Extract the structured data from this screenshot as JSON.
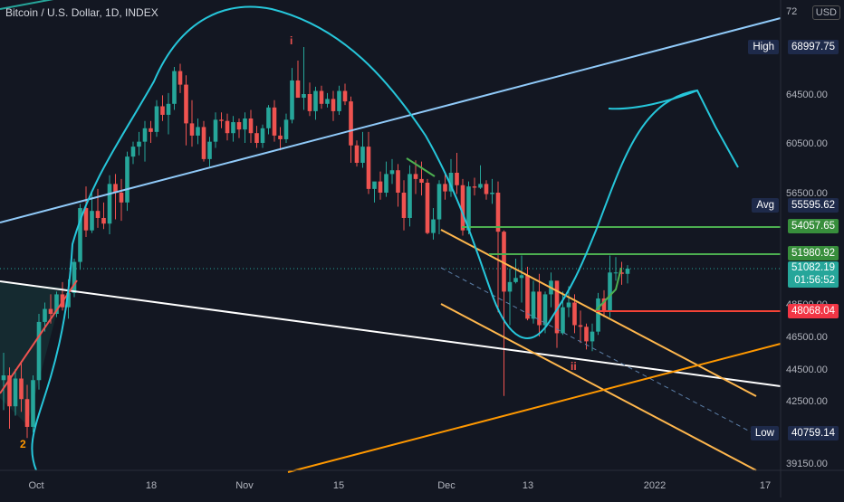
{
  "header": {
    "title": "Bitcoin / U.S. Dollar, 1D, INDEX",
    "currency": "USD"
  },
  "price_scale": {
    "top_partial_label": "72",
    "ticks": [
      "64500.00",
      "60500.00",
      "56500.00",
      "48500.00",
      "46500.00",
      "44500.00",
      "42500.00",
      "39150.00"
    ],
    "high": {
      "label": "High",
      "value": "68997.75"
    },
    "avg": {
      "label": "Avg",
      "value": "55595.62"
    },
    "low": {
      "label": "Low",
      "value": "40759.14"
    },
    "hline_green_upper": "54057.65",
    "hline_green_lower": "51980.92",
    "current": {
      "value": "51082.19",
      "countdown": "01:56:52"
    },
    "hline_red": "48068.04"
  },
  "time_axis": {
    "labels": [
      "Oct",
      "18",
      "Nov",
      "15",
      "Dec",
      "13",
      "2022",
      "17"
    ]
  },
  "annotations": {
    "top_marker": "i",
    "bottom_marker": "ii",
    "left_marker": "2"
  },
  "colors": {
    "background": "#131722",
    "up": "#26a69a",
    "down": "#ef5350",
    "curve": "#26c6da",
    "trend_blue": "#90caf9",
    "trend_white": "#ffffff",
    "channel_yellow": "#ffb74d",
    "orange_line": "#ff9800",
    "green_level": "#4caf50",
    "red_level": "#f44336"
  },
  "chart_data": {
    "type": "candlestick",
    "title": "Bitcoin / U.S. Dollar, 1D, INDEX",
    "ylim": [
      38800,
      72800
    ],
    "x_tick_labels": [
      "Oct",
      "18",
      "Nov",
      "15",
      "Dec",
      "13",
      "2022",
      "17"
    ],
    "y_tick_labels": [
      "64500.00",
      "60500.00",
      "56500.00",
      "48500.00",
      "46500.00",
      "44500.00",
      "42500.00",
      "39150.00"
    ],
    "series": [
      {
        "name": "BTCUSD",
        "values": [
          [
            43800,
            45500,
            42000,
            44100
          ],
          [
            44100,
            44600,
            41000,
            42200
          ],
          [
            42200,
            44500,
            41700,
            43900
          ],
          [
            43900,
            45000,
            41900,
            42600
          ],
          [
            42600,
            43500,
            40500,
            41100
          ],
          [
            41100,
            44100,
            40800,
            43800
          ],
          [
            43800,
            47900,
            43200,
            47400
          ],
          [
            47400,
            48600,
            46800,
            48200
          ],
          [
            48200,
            49200,
            47300,
            47900
          ],
          [
            47900,
            49400,
            47700,
            49200
          ],
          [
            49200,
            50100,
            48100,
            48300
          ],
          [
            48300,
            50300,
            47600,
            49300
          ],
          [
            49300,
            51700,
            49000,
            51500
          ],
          [
            51500,
            55700,
            51000,
            55400
          ],
          [
            55400,
            57000,
            53300,
            53800
          ],
          [
            53800,
            56600,
            53600,
            55200
          ],
          [
            55200,
            56800,
            54000,
            54700
          ],
          [
            54700,
            55800,
            53900,
            54300
          ],
          [
            54300,
            57900,
            53500,
            57200
          ],
          [
            57200,
            58000,
            54600,
            56500
          ],
          [
            56500,
            57600,
            54500,
            55800
          ],
          [
            55800,
            59800,
            55200,
            59400
          ],
          [
            59400,
            60600,
            58800,
            60200
          ],
          [
            60200,
            61400,
            59500,
            60600
          ],
          [
            60600,
            62300,
            59000,
            61700
          ],
          [
            61700,
            62300,
            60500,
            61400
          ],
          [
            61400,
            64000,
            61000,
            63500
          ],
          [
            63500,
            64400,
            62300,
            62800
          ],
          [
            62800,
            64600,
            61200,
            63700
          ],
          [
            63700,
            67100,
            63200,
            66700
          ],
          [
            66700,
            67400,
            64600,
            65400
          ],
          [
            65400,
            66300,
            60300,
            62100
          ],
          [
            62100,
            64000,
            60200,
            61100
          ],
          [
            61100,
            62500,
            60400,
            61800
          ],
          [
            61800,
            62300,
            59000,
            59200
          ],
          [
            59200,
            61000,
            58600,
            60600
          ],
          [
            60600,
            63000,
            60100,
            62400
          ],
          [
            62400,
            63000,
            61700,
            62300
          ],
          [
            62300,
            62900,
            60700,
            61300
          ],
          [
            61300,
            62700,
            60600,
            62200
          ],
          [
            62200,
            62500,
            60900,
            61600
          ],
          [
            61600,
            63000,
            60500,
            62500
          ],
          [
            62500,
            63200,
            60500,
            61300
          ],
          [
            61300,
            61900,
            60100,
            60500
          ],
          [
            60500,
            62000,
            60100,
            61700
          ],
          [
            61700,
            63600,
            61200,
            63400
          ],
          [
            63400,
            64000,
            60600,
            61100
          ],
          [
            61100,
            61800,
            59900,
            60800
          ],
          [
            60800,
            62900,
            60500,
            62400
          ],
          [
            62400,
            67000,
            62100,
            65800
          ],
          [
            65800,
            67700,
            64500,
            64200
          ],
          [
            64200,
            69000,
            63200,
            64500
          ],
          [
            64500,
            65600,
            62700,
            63100
          ],
          [
            63100,
            65200,
            62400,
            64800
          ],
          [
            64800,
            65300,
            63300,
            63700
          ],
          [
            63700,
            64600,
            63400,
            64100
          ],
          [
            64100,
            64800,
            62300,
            63100
          ],
          [
            63100,
            65300,
            62800,
            64800
          ],
          [
            64800,
            65500,
            63600,
            63900
          ],
          [
            63900,
            64300,
            58900,
            60300
          ],
          [
            60300,
            60700,
            58600,
            58900
          ],
          [
            58900,
            61400,
            58500,
            60200
          ],
          [
            60200,
            61400,
            56400,
            56800
          ],
          [
            56800,
            57300,
            55800,
            57400
          ],
          [
            57400,
            58200,
            56000,
            56500
          ],
          [
            56500,
            59000,
            56200,
            58000
          ],
          [
            58000,
            59200,
            57200,
            58300
          ],
          [
            58300,
            58800,
            55500,
            56500
          ],
          [
            56500,
            57500,
            53800,
            54700
          ],
          [
            54700,
            58700,
            54100,
            58000
          ],
          [
            58000,
            59100,
            56400,
            57600
          ],
          [
            57600,
            59000,
            56300,
            57300
          ],
          [
            57300,
            57600,
            53500,
            53600
          ],
          [
            53600,
            55400,
            53100,
            54600
          ],
          [
            54600,
            57500,
            53500,
            57200
          ],
          [
            57200,
            58000,
            56000,
            56600
          ],
          [
            56600,
            59200,
            56200,
            58100
          ],
          [
            58100,
            59700,
            56400,
            57100
          ],
          [
            57100,
            57600,
            53400,
            53800
          ],
          [
            53800,
            57400,
            53500,
            57000
          ],
          [
            57000,
            57700,
            56300,
            56900
          ],
          [
            56900,
            58700,
            56800,
            57200
          ],
          [
            57200,
            57500,
            56000,
            56400
          ],
          [
            56400,
            57600,
            55700,
            56500
          ],
          [
            56500,
            57400,
            48000,
            53700
          ],
          [
            53700,
            53800,
            42800,
            49400
          ],
          [
            49400,
            51100,
            47200,
            50100
          ],
          [
            50100,
            51700,
            50000,
            50400
          ],
          [
            50400,
            51900,
            48600,
            50600
          ],
          [
            50600,
            51200,
            47500,
            47600
          ],
          [
            47600,
            50200,
            47300,
            49400
          ],
          [
            49400,
            50700,
            46500,
            47200
          ],
          [
            47200,
            49400,
            46700,
            49200
          ],
          [
            49200,
            50800,
            48300,
            50200
          ],
          [
            50200,
            50200,
            45800,
            46700
          ],
          [
            46700,
            49400,
            46600,
            48300
          ],
          [
            48300,
            49800,
            47700,
            48600
          ],
          [
            48600,
            49200,
            46700,
            47200
          ],
          [
            47200,
            48100,
            46100,
            47100
          ],
          [
            47100,
            47300,
            45700,
            46200
          ],
          [
            46200,
            47300,
            45600,
            46800
          ],
          [
            46800,
            49300,
            46600,
            48900
          ],
          [
            48900,
            49500,
            47700,
            48100
          ],
          [
            48100,
            51900,
            47700,
            50800
          ],
          [
            50800,
            51800,
            50200,
            50800
          ],
          [
            50800,
            51500,
            49900,
            50700
          ],
          [
            50700,
            51300,
            50000,
            51082
          ]
        ]
      }
    ],
    "overlays": {
      "horizontal_levels": [
        54057.65,
        51980.92,
        48068.04
      ],
      "projection_curve": "cyan freehand projection",
      "trendlines": [
        "blue ascending",
        "white descending",
        "yellow descending channel",
        "orange ascending"
      ]
    }
  }
}
